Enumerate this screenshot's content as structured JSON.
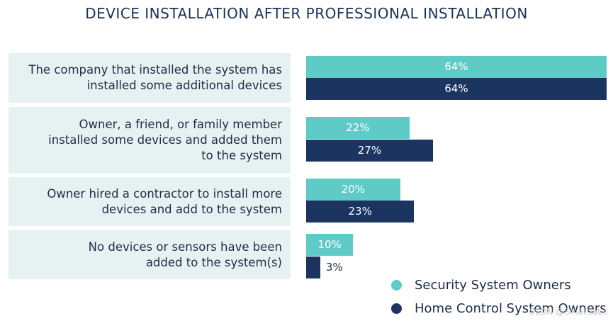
{
  "chart_data": {
    "type": "bar",
    "orientation": "horizontal",
    "title": "DEVICE INSTALLATION AFTER PROFESSIONAL INSTALLATION",
    "categories": [
      "The company that installed the system has installed some additional devices",
      "Owner, a friend, or family member installed some devices and added them to the system",
      "Owner hired a contractor to install more devices and add to the system",
      "No devices or sensors have been added to the system(s)"
    ],
    "category_lines": [
      [
        "The company that installed the system has",
        "installed some additional devices"
      ],
      [
        "Owner, a friend, or family member",
        "installed some devices and added them",
        "to the system"
      ],
      [
        "Owner hired a contractor to install more",
        "devices and add to the system"
      ],
      [
        "No devices or sensors have been",
        "added to the system(s)"
      ]
    ],
    "series": [
      {
        "name": "Security System Owners",
        "values": [
          64,
          22,
          20,
          10
        ],
        "labels": [
          "64%",
          "22%",
          "20%",
          "10%"
        ],
        "color": "#5fcbc7"
      },
      {
        "name": "Home Control System Owners",
        "values": [
          64,
          27,
          23,
          3
        ],
        "labels": [
          "64%",
          "27%",
          "23%",
          "3%"
        ],
        "color": "#1c3460"
      }
    ],
    "xlim": [
      0,
      64
    ],
    "xlabel": "",
    "ylabel": "",
    "legend_position": "bottom-right",
    "grid": false
  },
  "watermark": "CSDN @Smartlabs"
}
